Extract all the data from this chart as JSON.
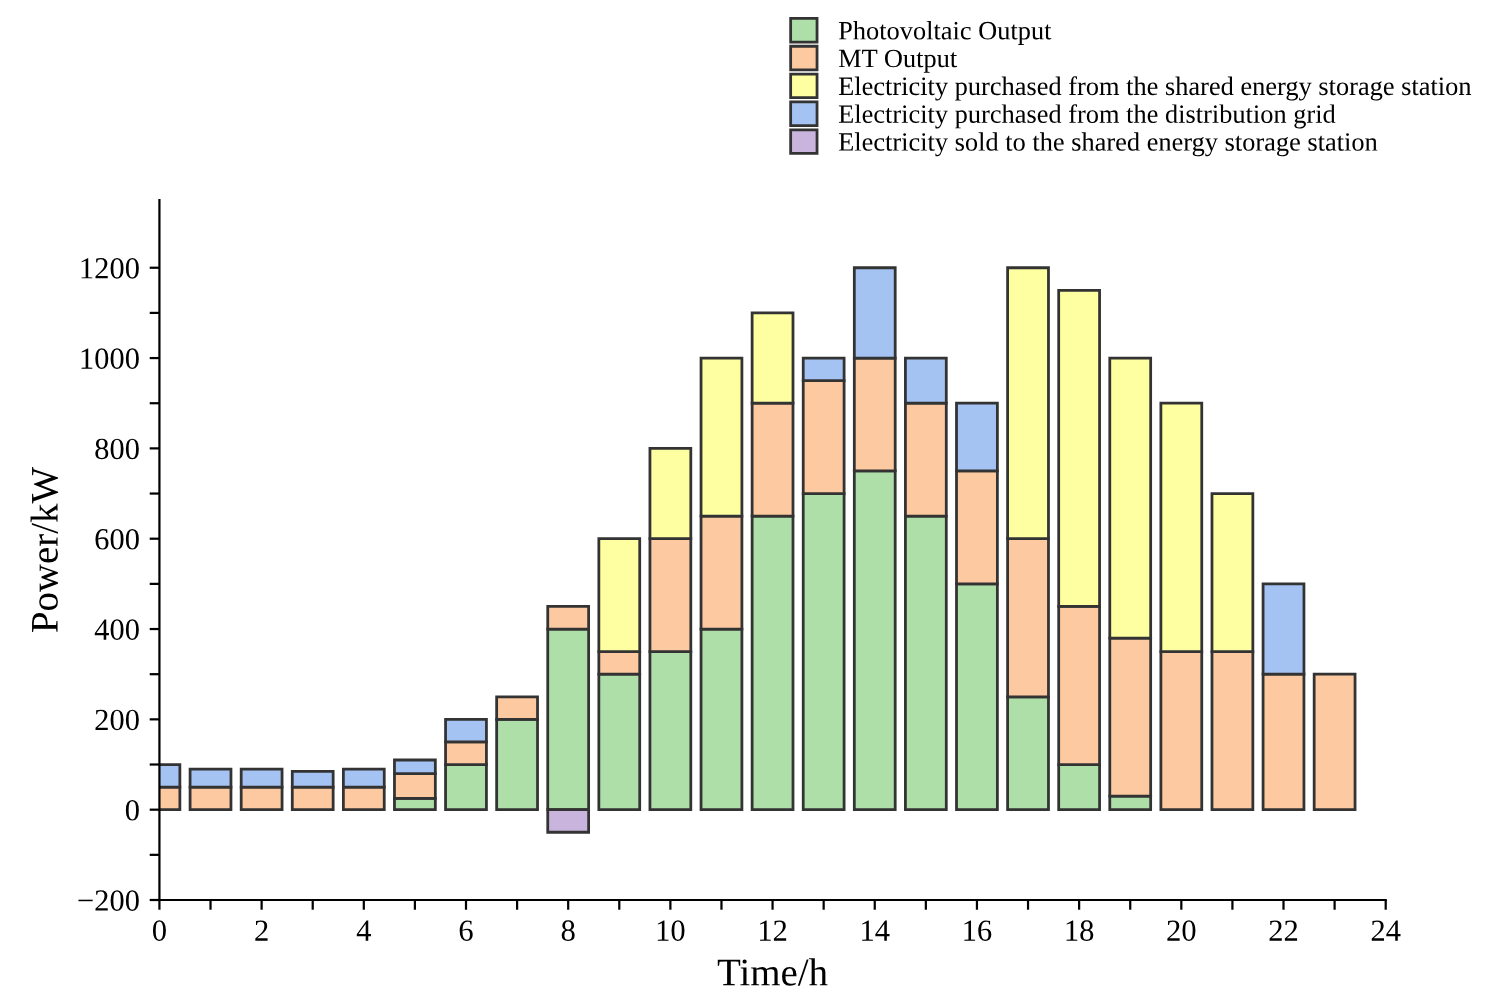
{
  "chart_data": {
    "type": "bar",
    "stacked": true,
    "xlabel": "Time/h",
    "ylabel": "Power/kW",
    "x": [
      0,
      1,
      2,
      3,
      4,
      5,
      6,
      7,
      8,
      9,
      10,
      11,
      12,
      13,
      14,
      15,
      16,
      17,
      18,
      19,
      20,
      21,
      22,
      23
    ],
    "series": [
      {
        "name": "Photovoltaic Output",
        "color": "#aedfa9",
        "values": [
          null,
          null,
          null,
          null,
          null,
          25,
          100,
          200,
          400,
          300,
          350,
          400,
          650,
          700,
          750,
          650,
          500,
          250,
          100,
          30,
          null,
          null,
          null,
          null
        ]
      },
      {
        "name": "MT Output",
        "color": "#fdc9a0",
        "values": [
          50,
          50,
          50,
          50,
          50,
          55,
          50,
          50,
          50,
          50,
          250,
          250,
          250,
          250,
          250,
          250,
          250,
          350,
          350,
          350,
          350,
          350,
          300,
          300
        ]
      },
      {
        "name": "Electricity purchased from the shared energy storage station",
        "color": "#feffa0",
        "values": [
          null,
          null,
          null,
          null,
          null,
          null,
          null,
          null,
          null,
          250,
          200,
          350,
          200,
          null,
          null,
          null,
          null,
          600,
          700,
          620,
          550,
          350,
          null,
          null
        ]
      },
      {
        "name": "Electricity purchased from the distribution grid",
        "color": "#a4c3f2",
        "values": [
          50,
          40,
          40,
          35,
          40,
          30,
          50,
          null,
          null,
          null,
          null,
          null,
          null,
          50,
          200,
          100,
          150,
          null,
          null,
          null,
          null,
          null,
          200,
          null
        ]
      },
      {
        "name": "Electricity sold to the shared energy storage station",
        "color": "#c8b4dc",
        "values": [
          null,
          null,
          null,
          null,
          null,
          null,
          null,
          null,
          -50,
          null,
          null,
          null,
          null,
          null,
          null,
          null,
          null,
          null,
          null,
          null,
          null,
          null,
          null,
          null
        ]
      }
    ],
    "xlim": [
      0,
      24
    ],
    "xticks": [
      0,
      {
        "value": 1,
        "label": null
      },
      2,
      {
        "value": 3,
        "label": null
      },
      4,
      {
        "value": 5,
        "label": null
      },
      6,
      {
        "value": 7,
        "label": null
      },
      8,
      {
        "value": 9,
        "label": null
      },
      10,
      {
        "value": 11,
        "label": null
      },
      12,
      {
        "value": 13,
        "label": null
      },
      14,
      {
        "value": 15,
        "label": null
      },
      16,
      {
        "value": 17,
        "label": null
      },
      18,
      {
        "value": 19,
        "label": null
      },
      20,
      {
        "value": 21,
        "label": null
      },
      22,
      {
        "value": 23,
        "label": null
      },
      24
    ],
    "ylim": [
      -200,
      1350
    ],
    "yticks": [
      {
        "value": -200,
        "label": "−200"
      },
      {
        "value": -100,
        "label": null
      },
      0,
      {
        "value": 100,
        "label": null
      },
      200,
      {
        "value": 300,
        "label": null
      },
      400,
      {
        "value": 500,
        "label": null
      },
      600,
      {
        "value": 700,
        "label": null
      },
      800,
      {
        "value": 900,
        "label": null
      },
      1000,
      {
        "value": 1100,
        "label": null
      },
      1200
    ],
    "grid": false,
    "legend": "top right"
  }
}
